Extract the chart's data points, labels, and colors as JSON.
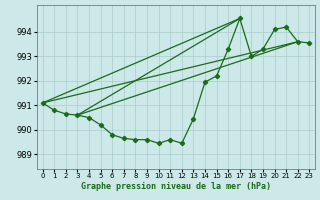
{
  "title": "Graphe pression niveau de la mer (hPa)",
  "line_color": "#1a6b1a",
  "bg_color": "#cce8e8",
  "grid_color": "#aacccc",
  "xlim": [
    -0.5,
    23.5
  ],
  "ylim": [
    988.4,
    995.1
  ],
  "yticks": [
    989,
    990,
    991,
    992,
    993,
    994
  ],
  "xticks": [
    0,
    1,
    2,
    3,
    4,
    5,
    6,
    7,
    8,
    9,
    10,
    11,
    12,
    13,
    14,
    15,
    16,
    17,
    18,
    19,
    20,
    21,
    22,
    23
  ],
  "series": [
    [
      0,
      991.1
    ],
    [
      1,
      990.8
    ],
    [
      2,
      990.65
    ],
    [
      3,
      990.6
    ],
    [
      4,
      990.5
    ],
    [
      5,
      990.2
    ],
    [
      6,
      989.8
    ],
    [
      7,
      989.65
    ],
    [
      8,
      989.6
    ],
    [
      9,
      989.6
    ],
    [
      10,
      989.45
    ],
    [
      11,
      989.6
    ],
    [
      12,
      989.45
    ],
    [
      13,
      990.45
    ],
    [
      14,
      991.95
    ],
    [
      15,
      992.2
    ],
    [
      16,
      993.3
    ],
    [
      17,
      994.55
    ],
    [
      18,
      993.0
    ],
    [
      19,
      993.3
    ],
    [
      20,
      994.1
    ],
    [
      21,
      994.2
    ],
    [
      22,
      993.6
    ],
    [
      23,
      993.55
    ]
  ],
  "extra_lines": [
    [
      [
        0,
        991.1
      ],
      [
        17,
        994.55
      ]
    ],
    [
      [
        0,
        991.1
      ],
      [
        22,
        993.6
      ]
    ],
    [
      [
        3,
        990.6
      ],
      [
        17,
        994.55
      ]
    ],
    [
      [
        3,
        990.6
      ],
      [
        22,
        993.6
      ]
    ]
  ]
}
